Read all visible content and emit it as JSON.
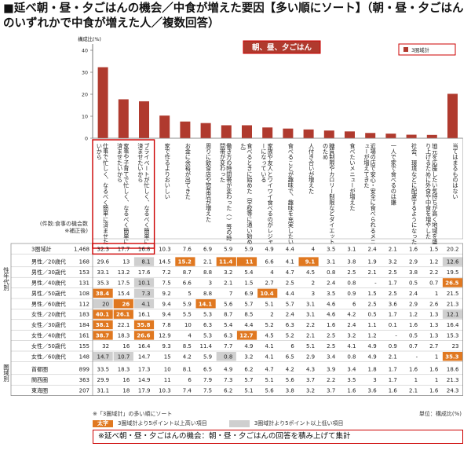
{
  "title": "■延べ朝・昼・夕ごはんの機会／中食が増えた要因【多い順にソート】（朝・昼・夕ごはんのいずれかで中食が増えた人／複数回答）",
  "header_banner": "朝、昼、夕ごはん",
  "ylabel": "構成比(%)",
  "legend": "3圏域計",
  "n_header": "(件数:食事の機会数 ※補正後)",
  "group_labels": {
    "gender_age": "性年代別",
    "region": "圏域別"
  },
  "legend_notes": {
    "high": "3圏域計より5ポイント以上高い項目",
    "low": "3圏域計より5ポイント以上低い項目"
  },
  "highlight_label": "太字",
  "sort_note": "※「3圏域計」の多い順にソート",
  "unit_note": "単位：構成比(%)",
  "footer_note": "※延べ朝・昼・夕ごはんの機会：朝・昼・夕ごはんの回答を積み上げて集計",
  "colors": {
    "bar": "#b03a2e",
    "high": "#e07820",
    "low": "#cfcfcf",
    "border": "#cc0000"
  },
  "chart_data": {
    "type": "bar",
    "title": "朝、昼、夕ごはん",
    "ylabel": "構成比(%)",
    "ylim": [
      0,
      40
    ],
    "yticks": [
      0,
      10,
      20,
      30,
      40
    ],
    "series_name": "3圏域計",
    "categories": [
      "仕事で忙しく、なるべく簡単に済ませたいから",
      "家事や子育てで忙しく、なるべく簡単に済ませたいから",
      "ブライベートが忙しく、なるべく簡単に済ませたいから",
      "家で作るよりおいしい",
      "お金に余裕が出てきた",
      "周りに飲食店や惣菜店が増えた",
      "働き方の時間帯が変わった（ ）等の時間帯が変わった",
      "食べるときに始めた（学校等に通い始めた）",
      "家族や友人とワイワイ食べるのがレジャーになっている",
      "食べることが趣味で、趣味を充実したい",
      "人付き合いが増えた",
      "糖質制限やカロリー制限などダイエットのため",
      "食べたいメニューが増えた",
      "近場の店で安心・安全に食べられるメニューが増えてきた",
      "一人で家で食べるのは嫌",
      "社会、環境などに配慮するようになった",
      "地元を応援したい気持ちが高く地域を盛り上げるために外食や中食を増やした",
      "当てはまるものはない"
    ],
    "values": [
      32.3,
      17.7,
      16.8,
      10.3,
      7.6,
      6.9,
      5.9,
      5.9,
      4.9,
      4.4,
      4.0,
      3.5,
      3.1,
      2.4,
      2.1,
      1.6,
      1.5,
      20.2
    ],
    "row_groups": [
      "",
      "性年代別",
      "性年代別",
      "性年代別",
      "性年代別",
      "性年代別",
      "性年代別",
      "性年代別",
      "性年代別",
      "性年代別",
      "性年代別",
      "圏域別",
      "圏域別",
      "圏域別"
    ],
    "rows": [
      {
        "label": "3圏域計",
        "n": "1,468",
        "values": [
          32.3,
          17.7,
          16.8,
          10.3,
          7.6,
          6.9,
          5.9,
          5.9,
          4.9,
          4.4,
          4.0,
          3.5,
          3.1,
          2.4,
          2.1,
          1.6,
          1.5,
          20.2
        ]
      },
      {
        "label": "男性／20歳代",
        "n": "168",
        "values": [
          29.6,
          13.0,
          8.1,
          14.5,
          15.2,
          2.1,
          11.4,
          11.0,
          6.6,
          4.1,
          9.1,
          3.1,
          3.8,
          1.9,
          3.2,
          2.9,
          1.2,
          12.6
        ]
      },
      {
        "label": "男性／30歳代",
        "n": "153",
        "values": [
          33.1,
          13.2,
          17.6,
          7.2,
          8.7,
          8.8,
          3.2,
          5.4,
          4.0,
          4.7,
          4.5,
          0.8,
          2.5,
          2.1,
          2.5,
          3.8,
          2.2,
          19.5
        ]
      },
      {
        "label": "男性／40歳代",
        "n": "131",
        "values": [
          35.3,
          17.5,
          10.1,
          7.5,
          6.6,
          3.0,
          2.1,
          1.5,
          2.7,
          2.5,
          2.0,
          2.4,
          0.8,
          "-",
          1.7,
          0.5,
          0.7,
          26.5
        ]
      },
      {
        "label": "男性／50歳代",
        "n": "108",
        "values": [
          38.4,
          15.4,
          7.3,
          9.2,
          5.0,
          8.8,
          7.0,
          6.9,
          10.4,
          4.4,
          3.0,
          3.5,
          0.9,
          1.5,
          2.5,
          2.4,
          1.0,
          21.5
        ]
      },
      {
        "label": "男性／60歳代",
        "n": "112",
        "values": [
          20.0,
          26.0,
          4.1,
          9.4,
          5.9,
          14.1,
          5.6,
          5.7,
          5.1,
          5.7,
          3.1,
          4.6,
          6.0,
          2.5,
          3.6,
          2.9,
          2.6,
          21.3
        ]
      },
      {
        "label": "女性／20歳代",
        "n": "183",
        "values": [
          40.1,
          26.1,
          16.1,
          9.4,
          5.5,
          5.3,
          8.7,
          8.5,
          2.0,
          2.4,
          3.1,
          4.6,
          4.2,
          0.5,
          1.7,
          1.2,
          1.3,
          12.1
        ]
      },
      {
        "label": "女性／30歳代",
        "n": "184",
        "values": [
          38.1,
          22.1,
          35.8,
          7.8,
          10.0,
          6.3,
          5.4,
          4.4,
          5.2,
          6.3,
          2.2,
          1.6,
          2.4,
          1.1,
          0.1,
          1.6,
          1.3,
          16.4
        ]
      },
      {
        "label": "女性／40歳代",
        "n": "161",
        "values": [
          38.7,
          18.3,
          26.6,
          12.9,
          4.0,
          5.3,
          6.3,
          12.7,
          4.5,
          5.2,
          2.1,
          2.5,
          3.2,
          1.2,
          "-",
          0.5,
          1.3,
          15.3
        ]
      },
      {
        "label": "女性／50歳代",
        "n": "155",
        "values": [
          32.0,
          16.0,
          16.4,
          9.3,
          8.5,
          11.4,
          7.7,
          4.9,
          4.1,
          6.0,
          5.1,
          2.5,
          4.1,
          4.9,
          0.9,
          0.7,
          2.7,
          23.0
        ]
      },
      {
        "label": "女性／60歳代",
        "n": "148",
        "values": [
          14.7,
          10.7,
          14.7,
          15.0,
          4.2,
          5.9,
          0.8,
          3.2,
          4.1,
          6.5,
          2.9,
          3.4,
          0.8,
          4.9,
          2.1,
          "-",
          1.0,
          35.3
        ]
      },
      {
        "label": "首都圏",
        "n": "899",
        "values": [
          33.5,
          18.3,
          17.3,
          10.0,
          8.1,
          6.5,
          4.9,
          6.2,
          4.7,
          4.2,
          4.3,
          3.9,
          3.4,
          1.8,
          1.7,
          1.6,
          1.6,
          18.6
        ]
      },
      {
        "label": "関西圏",
        "n": "363",
        "values": [
          29.9,
          16.0,
          14.9,
          11.0,
          6.0,
          7.9,
          7.3,
          5.7,
          5.1,
          5.6,
          3.7,
          2.2,
          3.5,
          3.0,
          1.7,
          1.0,
          1.0,
          21.3
        ]
      },
      {
        "label": "東海圏",
        "n": "207",
        "values": [
          31.1,
          18.0,
          17.9,
          10.3,
          7.4,
          7.5,
          6.2,
          5.1,
          5.6,
          3.8,
          3.2,
          3.7,
          1.6,
          3.6,
          1.6,
          2.1,
          1.6,
          24.3
        ]
      }
    ]
  }
}
